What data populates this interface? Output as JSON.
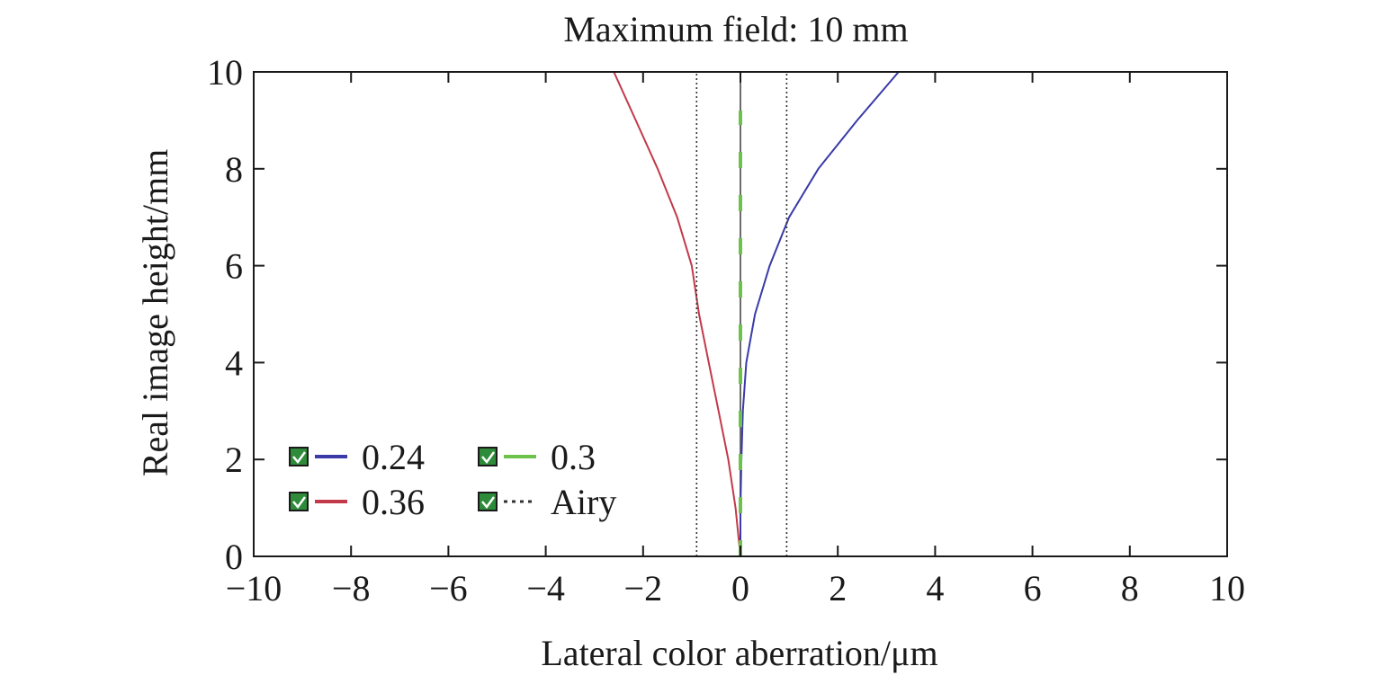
{
  "chart_data": {
    "type": "line",
    "title": "Maximum field: 10 mm",
    "xlabel": "Lateral color aberration/μm",
    "ylabel": "Real image height/mm",
    "xlim": [
      -10,
      10
    ],
    "ylim": [
      0,
      10
    ],
    "xticks": [
      "−10",
      "−8",
      "−6",
      "−4",
      "−2",
      "0",
      "2",
      "4",
      "6",
      "8",
      "10"
    ],
    "yticks": [
      "0",
      "2",
      "4",
      "6",
      "8",
      "10"
    ],
    "grid": false,
    "legend_position": "bottom-left",
    "series": [
      {
        "name": "0.24",
        "color": "#3a3aa8",
        "style": "solid",
        "points": [
          [
            0,
            0
          ],
          [
            0.0,
            1
          ],
          [
            0.02,
            2
          ],
          [
            0.05,
            3
          ],
          [
            0.12,
            4
          ],
          [
            0.3,
            5
          ],
          [
            0.6,
            6
          ],
          [
            1.0,
            7
          ],
          [
            1.6,
            8
          ],
          [
            2.4,
            9
          ],
          [
            3.25,
            10
          ]
        ]
      },
      {
        "name": "0.36",
        "color": "#c23a4a",
        "style": "solid",
        "points": [
          [
            0,
            0
          ],
          [
            -0.1,
            1
          ],
          [
            -0.25,
            2
          ],
          [
            -0.45,
            3
          ],
          [
            -0.65,
            4
          ],
          [
            -0.85,
            5
          ],
          [
            -1.0,
            6
          ],
          [
            -1.3,
            7
          ],
          [
            -1.7,
            8
          ],
          [
            -2.15,
            9
          ],
          [
            -2.6,
            10
          ]
        ]
      },
      {
        "name": "0.3",
        "color": "#6cc24a",
        "style": "dashed",
        "points": [
          [
            0,
            0
          ],
          [
            0,
            9.2
          ]
        ]
      },
      {
        "name": "Airy",
        "color": "#333333",
        "style": "dotted",
        "points": [
          [
            -0.9,
            0
          ],
          [
            -0.9,
            10
          ],
          [
            0.95,
            0
          ],
          [
            0.95,
            10
          ]
        ]
      }
    ]
  },
  "colors": {
    "axis": "#1a1a1a",
    "zero_line": "#6b6b6b",
    "checkbox_fill": "#2e8b3a"
  }
}
